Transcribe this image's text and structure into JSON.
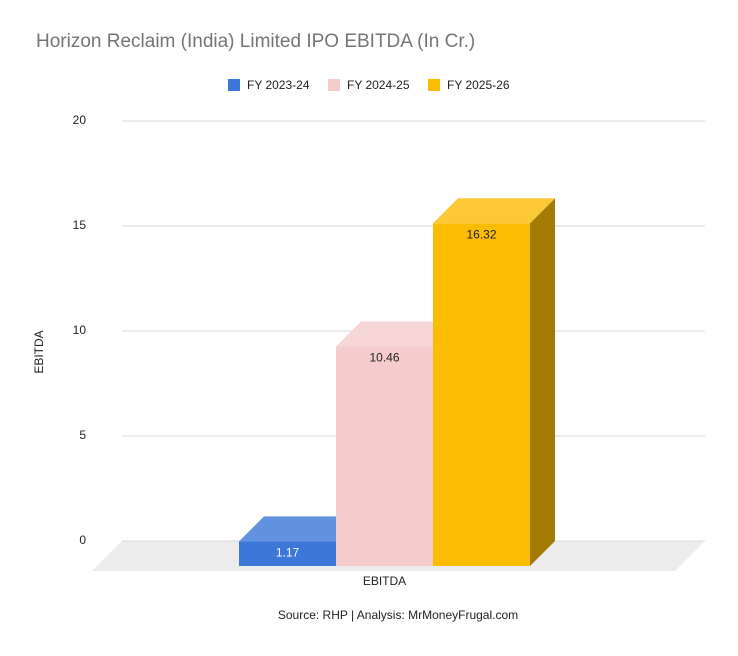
{
  "chart_data": {
    "type": "bar3d",
    "title": "Horizon Reclaim (India) Limited IPO EBITDA (In Cr.)",
    "y_label": "EBITDA",
    "source": "Source: RHP | Analysis: MrMoneyFrugal.com",
    "categories": [
      "EBITDA"
    ],
    "series": [
      {
        "name": "FY 2023-24",
        "color": "#3c78d8",
        "values": [
          1.17
        ]
      },
      {
        "name": "FY 2024-25",
        "color": "#f4cccc",
        "values": [
          10.46
        ]
      },
      {
        "name": "FY 2025-26",
        "color": "#fbbc04",
        "values": [
          16.32
        ]
      }
    ],
    "ylim": [
      0,
      20
    ],
    "yticks": [
      0,
      5,
      10,
      15,
      20
    ],
    "grid": true,
    "legend": "top"
  }
}
